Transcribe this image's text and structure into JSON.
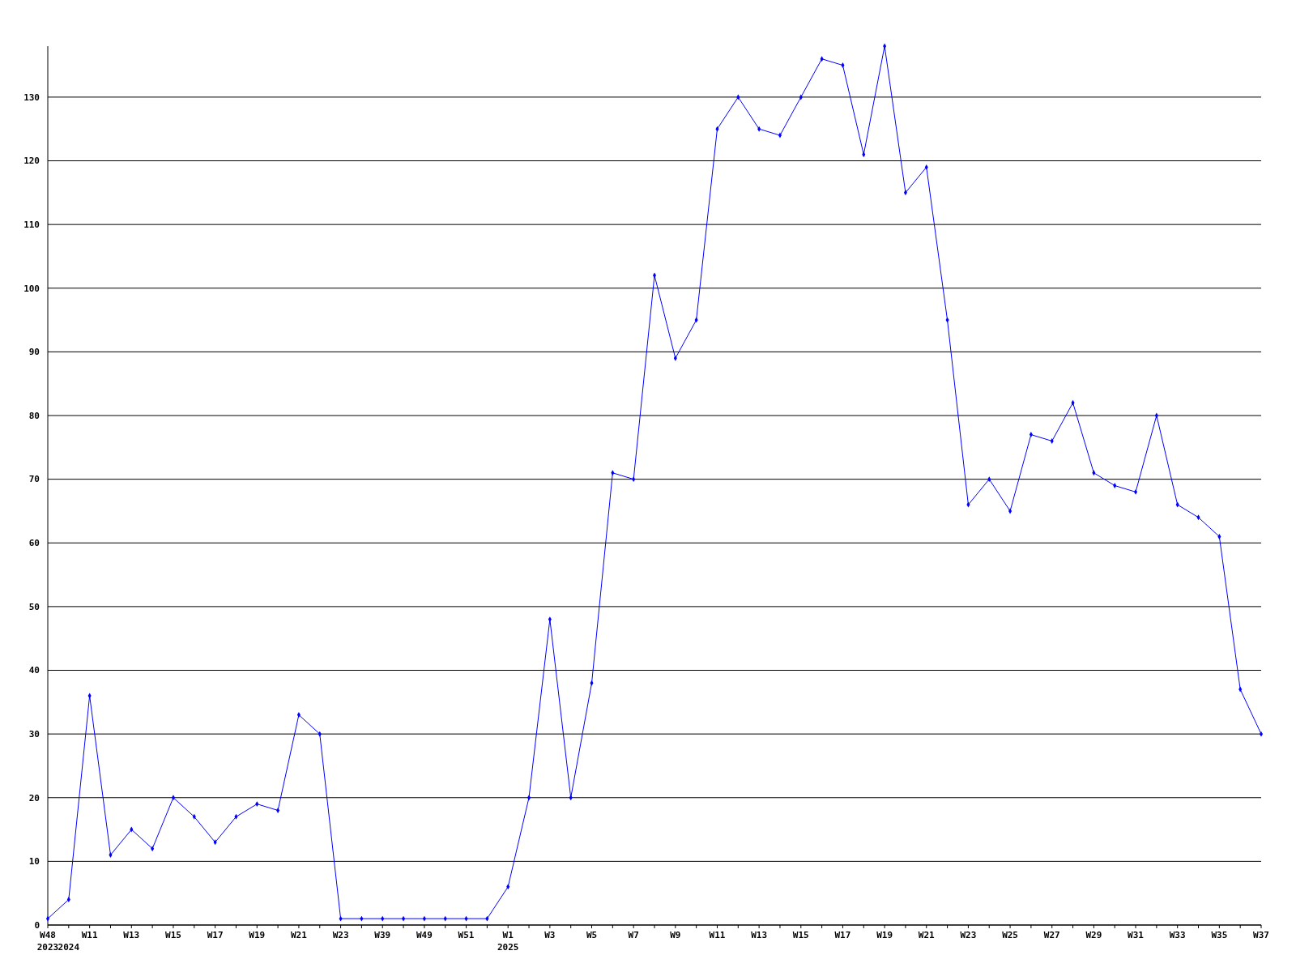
{
  "chart_data": {
    "type": "line",
    "categories": [
      "W48\n2023",
      "\n2024",
      "W11",
      null,
      "W13",
      null,
      "W15",
      null,
      "W17",
      null,
      "W19",
      null,
      "W21",
      null,
      "W23",
      null,
      "W39",
      null,
      "W49",
      null,
      "W51",
      null,
      "W1\n2025",
      null,
      "W3",
      null,
      "W5",
      null,
      "W7",
      null,
      "W9",
      null,
      "W11",
      null,
      "W13",
      null,
      "W15",
      null,
      "W17",
      null,
      "W19",
      null,
      "W21",
      null,
      "W23",
      null,
      "W25",
      null,
      "W27",
      null,
      "W29",
      null,
      "W31",
      null,
      "W33",
      null,
      "W35",
      null,
      "W37"
    ],
    "series": [
      {
        "color": "#0000ff",
        "values": [
          1,
          4,
          36,
          11,
          15,
          12,
          20,
          17,
          13,
          17,
          19,
          18,
          33,
          30,
          1,
          1,
          1,
          1,
          1,
          1,
          1,
          1,
          6,
          20,
          48,
          20,
          38,
          71,
          70,
          102,
          89,
          95,
          125,
          130,
          125,
          124,
          130,
          136,
          135,
          121,
          138,
          115,
          119,
          95,
          66,
          70,
          65,
          77,
          76,
          82,
          71,
          69,
          68,
          80,
          66,
          64,
          61,
          37,
          30
        ]
      }
    ],
    "ylim": [
      0,
      138
    ],
    "yticks": [
      0,
      10,
      20,
      30,
      40,
      50,
      60,
      70,
      80,
      90,
      100,
      110,
      120,
      130
    ],
    "grid": "y",
    "marker": "diamond",
    "line_style": "solid"
  }
}
